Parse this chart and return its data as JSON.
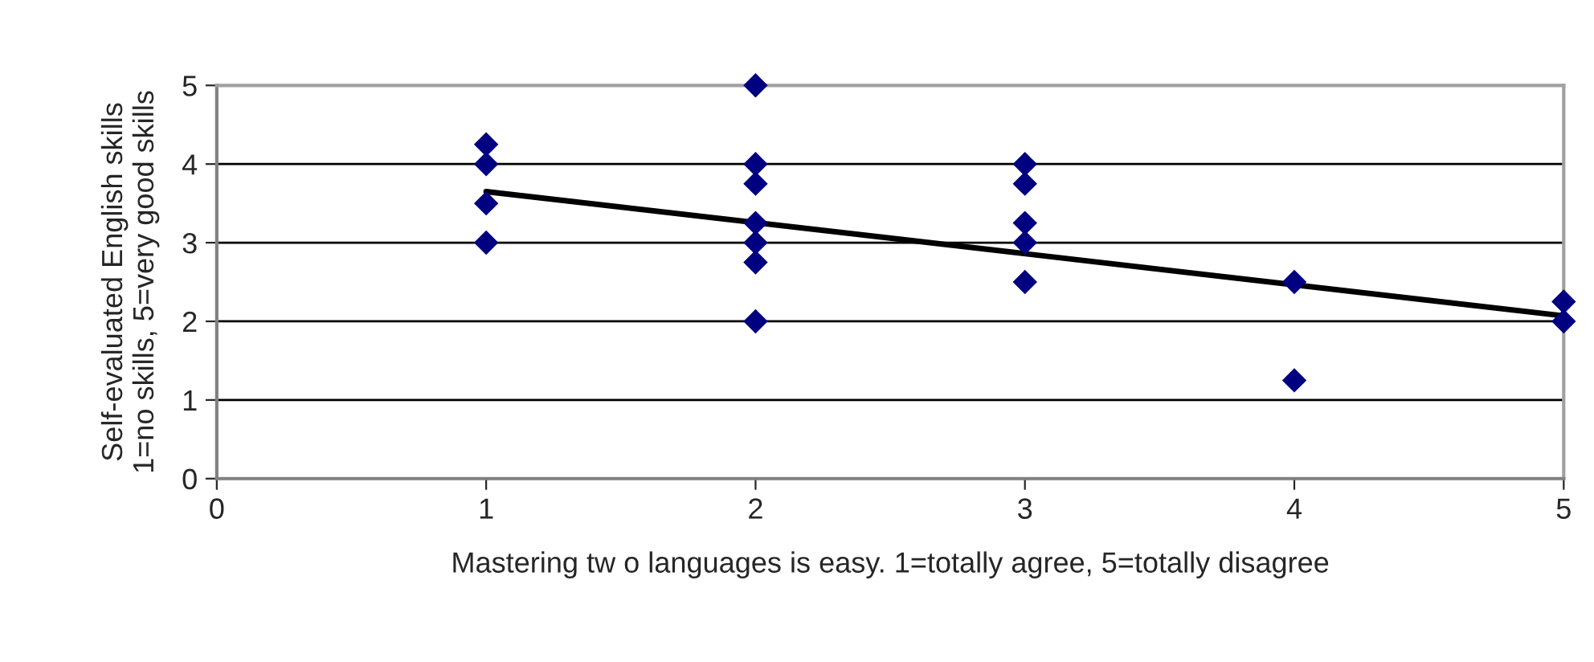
{
  "chart_data": {
    "type": "scatter",
    "xlabel": "Mastering tw o languages is easy. 1=totally agree, 5=totally disagree",
    "ylabel": "Self-evaluated English skills\n1=no skills, 5=very good skills",
    "series": [
      {
        "color": "#000080",
        "marker": "diamond",
        "x": [
          1,
          1,
          1,
          1,
          2,
          2,
          2,
          2,
          2,
          2,
          2,
          3,
          3,
          3,
          3,
          3,
          4,
          4,
          5,
          5
        ],
        "values": [
          4.25,
          4,
          3.5,
          3,
          5,
          4,
          3.75,
          3.25,
          3,
          2.75,
          2,
          4,
          3.75,
          3.25,
          3,
          2.5,
          2.5,
          1.25,
          2.25,
          2
        ]
      },
      {
        "type": "line",
        "color": "#000000",
        "marker": "none",
        "line_style": "solid",
        "x": [
          1,
          5
        ],
        "values": [
          3.65,
          2.07
        ]
      }
    ],
    "xlim": [
      0,
      5
    ],
    "xticks": [
      0,
      1,
      2,
      3,
      4,
      5
    ],
    "ylim": [
      0,
      5
    ],
    "yticks": [
      0,
      1,
      2,
      3,
      4,
      5
    ],
    "grid": "y",
    "legend": false
  }
}
